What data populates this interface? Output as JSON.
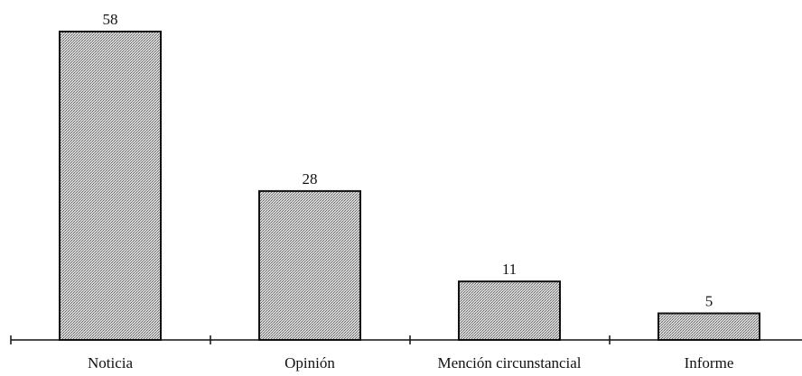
{
  "chart_data": {
    "type": "bar",
    "title": "",
    "xlabel": "",
    "ylabel": "",
    "categories": [
      "Noticia",
      "Opinión",
      "Mención circunstancial",
      "Informe"
    ],
    "values": [
      58,
      28,
      11,
      5
    ],
    "ylim": [
      0,
      60
    ],
    "grid": false,
    "legend": "none",
    "colors": {
      "bar_fill_light": "#d6d6d6",
      "bar_fill_dark": "#6a6a6a",
      "bar_stroke": "#111111",
      "axis": "#111111"
    }
  }
}
